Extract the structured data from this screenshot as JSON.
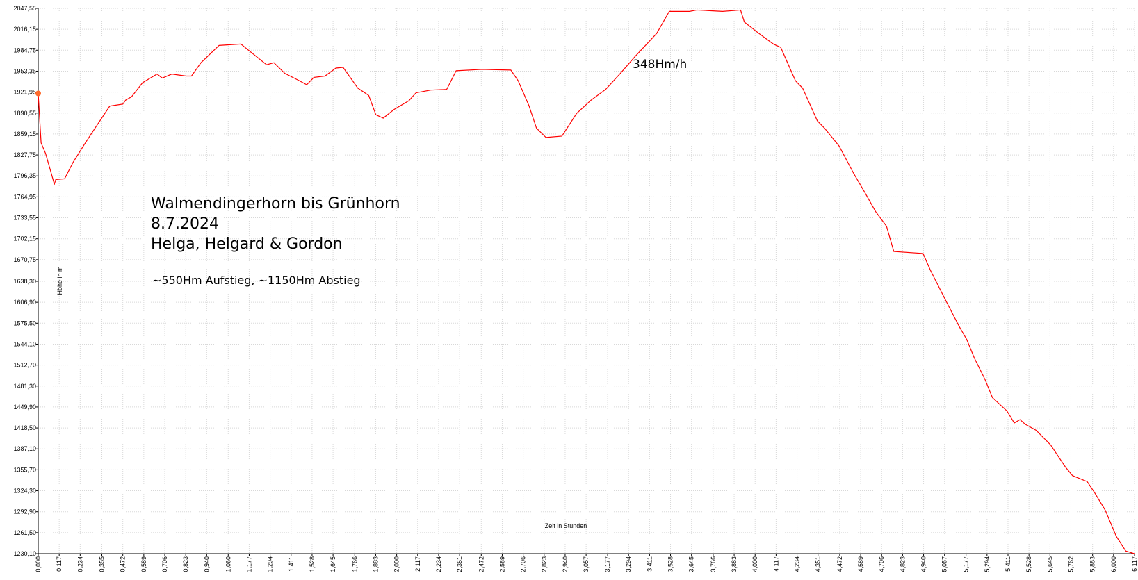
{
  "chart_data": {
    "type": "line",
    "title_lines": [
      "Walmendingerhorn bis Grünhorn",
      "8.7.2024",
      "Helga, Helgard & Gordon"
    ],
    "subtitle": "~550Hm Aufstieg, ~1150Hm Abstieg",
    "annotation": "348Hm/h",
    "y_label": "Höhe in m",
    "x_label": "Zeit in Stunden",
    "color": "#ff0000",
    "grid": true,
    "xlim": [
      0,
      6.117
    ],
    "ylim": [
      1230.1,
      2047.55
    ],
    "xticks": [
      {
        "value": 0,
        "label": "0,000"
      },
      {
        "value": 0.117,
        "label": "0,117"
      },
      {
        "value": 0.234,
        "label": "0,234"
      },
      {
        "value": 0.355,
        "label": "0,355"
      },
      {
        "value": 0.472,
        "label": "0,472"
      },
      {
        "value": 0.589,
        "label": "0,589"
      },
      {
        "value": 0.706,
        "label": "0,706"
      },
      {
        "value": 0.823,
        "label": "0,823"
      },
      {
        "value": 0.94,
        "label": "0,940"
      },
      {
        "value": 1.06,
        "label": "1,060"
      },
      {
        "value": 1.177,
        "label": "1,177"
      },
      {
        "value": 1.294,
        "label": "1,294"
      },
      {
        "value": 1.411,
        "label": "1,411"
      },
      {
        "value": 1.528,
        "label": "1,528"
      },
      {
        "value": 1.645,
        "label": "1,645"
      },
      {
        "value": 1.766,
        "label": "1,766"
      },
      {
        "value": 1.883,
        "label": "1,883"
      },
      {
        "value": 2,
        "label": "2,000"
      },
      {
        "value": 2.117,
        "label": "2,117"
      },
      {
        "value": 2.234,
        "label": "2,234"
      },
      {
        "value": 2.351,
        "label": "2,351"
      },
      {
        "value": 2.472,
        "label": "2,472"
      },
      {
        "value": 2.589,
        "label": "2,589"
      },
      {
        "value": 2.706,
        "label": "2,706"
      },
      {
        "value": 2.823,
        "label": "2,823"
      },
      {
        "value": 2.94,
        "label": "2,940"
      },
      {
        "value": 3.057,
        "label": "3,057"
      },
      {
        "value": 3.177,
        "label": "3,177"
      },
      {
        "value": 3.294,
        "label": "3,294"
      },
      {
        "value": 3.411,
        "label": "3,411"
      },
      {
        "value": 3.528,
        "label": "3,528"
      },
      {
        "value": 3.645,
        "label": "3,645"
      },
      {
        "value": 3.766,
        "label": "3,766"
      },
      {
        "value": 3.883,
        "label": "3,883"
      },
      {
        "value": 4,
        "label": "4,000"
      },
      {
        "value": 4.117,
        "label": "4,117"
      },
      {
        "value": 4.234,
        "label": "4,234"
      },
      {
        "value": 4.351,
        "label": "4,351"
      },
      {
        "value": 4.472,
        "label": "4,472"
      },
      {
        "value": 4.589,
        "label": "4,589"
      },
      {
        "value": 4.706,
        "label": "4,706"
      },
      {
        "value": 4.823,
        "label": "4,823"
      },
      {
        "value": 4.94,
        "label": "4,940"
      },
      {
        "value": 5.057,
        "label": "5,057"
      },
      {
        "value": 5.177,
        "label": "5,177"
      },
      {
        "value": 5.294,
        "label": "5,294"
      },
      {
        "value": 5.411,
        "label": "5,411"
      },
      {
        "value": 5.528,
        "label": "5,528"
      },
      {
        "value": 5.645,
        "label": "5,645"
      },
      {
        "value": 5.762,
        "label": "5,762"
      },
      {
        "value": 5.883,
        "label": "5,883"
      },
      {
        "value": 6,
        "label": "6,000"
      },
      {
        "value": 6.117,
        "label": "6,117"
      }
    ],
    "yticks": [
      {
        "value": 1230.1,
        "label": "1230,10"
      },
      {
        "value": 1261.5,
        "label": "1261,50"
      },
      {
        "value": 1292.9,
        "label": "1292,90"
      },
      {
        "value": 1324.3,
        "label": "1324,30"
      },
      {
        "value": 1355.7,
        "label": "1355,70"
      },
      {
        "value": 1387.1,
        "label": "1387,10"
      },
      {
        "value": 1418.5,
        "label": "1418,50"
      },
      {
        "value": 1449.9,
        "label": "1449,90"
      },
      {
        "value": 1481.3,
        "label": "1481,30"
      },
      {
        "value": 1512.7,
        "label": "1512,70"
      },
      {
        "value": 1544.1,
        "label": "1544,10"
      },
      {
        "value": 1575.5,
        "label": "1575,50"
      },
      {
        "value": 1606.9,
        "label": "1606,90"
      },
      {
        "value": 1638.3,
        "label": "1638,30"
      },
      {
        "value": 1670.75,
        "label": "1670,75"
      },
      {
        "value": 1702.15,
        "label": "1702,15"
      },
      {
        "value": 1733.55,
        "label": "1733,55"
      },
      {
        "value": 1764.95,
        "label": "1764,95"
      },
      {
        "value": 1796.35,
        "label": "1796,35"
      },
      {
        "value": 1827.75,
        "label": "1827,75"
      },
      {
        "value": 1859.15,
        "label": "1859,15"
      },
      {
        "value": 1890.55,
        "label": "1890,55"
      },
      {
        "value": 1921.95,
        "label": "1921,95"
      },
      {
        "value": 1953.35,
        "label": "1953,35"
      },
      {
        "value": 1984.75,
        "label": "1984,75"
      },
      {
        "value": 2016.15,
        "label": "2016,15"
      },
      {
        "value": 2047.55,
        "label": "2047,55"
      }
    ],
    "x": [
      0,
      0.004,
      0.016,
      0.041,
      0.09,
      0.098,
      0.147,
      0.195,
      0.256,
      0.317,
      0.399,
      0.472,
      0.488,
      0.521,
      0.582,
      0.663,
      0.692,
      0.745,
      0.826,
      0.855,
      0.908,
      1.009,
      1.131,
      1.172,
      1.274,
      1.315,
      1.376,
      1.457,
      1.498,
      1.538,
      1.6,
      1.661,
      1.701,
      1.783,
      1.844,
      1.884,
      1.925,
      1.986,
      2.068,
      2.108,
      2.19,
      2.279,
      2.332,
      2.475,
      2.637,
      2.678,
      2.739,
      2.78,
      2.833,
      2.922,
      3.004,
      3.085,
      3.166,
      3.248,
      3.329,
      3.451,
      3.521,
      3.634,
      3.675,
      3.818,
      3.919,
      3.94,
      4.021,
      4.102,
      4.143,
      4.225,
      4.265,
      4.347,
      4.387,
      4.469,
      4.55,
      4.611,
      4.672,
      4.733,
      4.774,
      4.937,
      4.978,
      5.059,
      5.14,
      5.181,
      5.222,
      5.283,
      5.324,
      5.405,
      5.446,
      5.478,
      5.507,
      5.568,
      5.649,
      5.731,
      5.771,
      5.853,
      5.893,
      5.954,
      6.015,
      6.068,
      6.117
    ],
    "values": [
      1920,
      1901,
      1846,
      1830,
      1784,
      1791,
      1792,
      1817,
      1843,
      1868,
      1901,
      1904,
      1910,
      1915,
      1936,
      1949,
      1943,
      1949,
      1946,
      1946,
      1966,
      1992,
      1994,
      1985,
      1963,
      1966,
      1950,
      1939,
      1933,
      1944,
      1946,
      1958,
      1959,
      1928,
      1917,
      1888,
      1883,
      1896,
      1909,
      1921,
      1925,
      1926,
      1954,
      1956,
      1955,
      1939,
      1901,
      1868,
      1854,
      1856,
      1890,
      1910,
      1926,
      1950,
      1975,
      2010,
      2043,
      2043,
      2045,
      2043,
      2045,
      2027,
      2010,
      1994,
      1989,
      1939,
      1928,
      1879,
      1868,
      1841,
      1800,
      1772,
      1743,
      1721,
      1683,
      1680,
      1655,
      1612,
      1570,
      1551,
      1524,
      1491,
      1464,
      1444,
      1426,
      1431,
      1424,
      1415,
      1393,
      1360,
      1347,
      1338,
      1322,
      1295,
      1256,
      1234,
      1230
    ]
  }
}
